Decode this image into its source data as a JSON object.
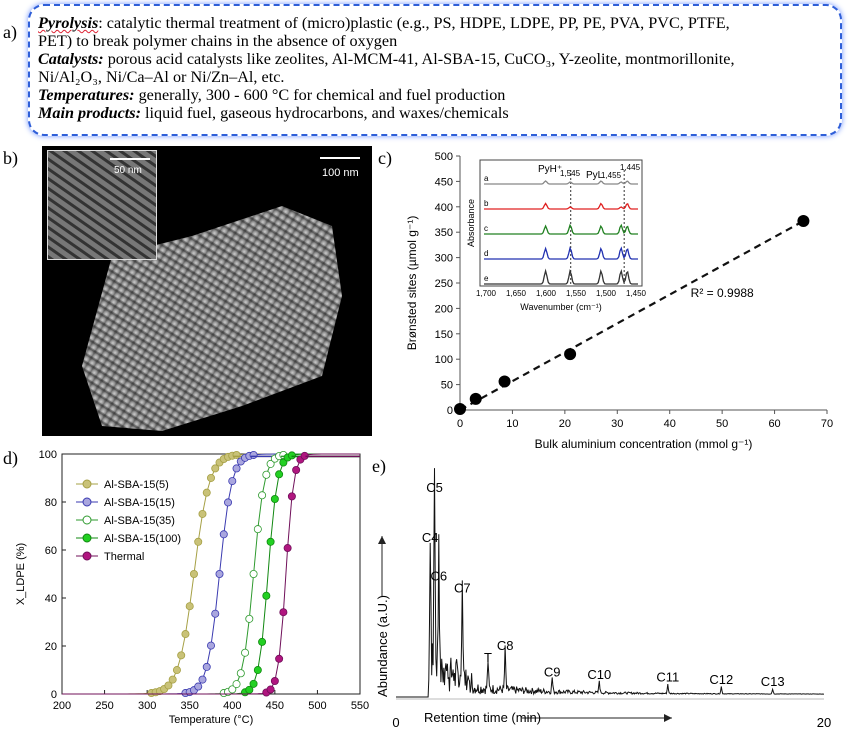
{
  "labels": {
    "a": "a)",
    "b": "b)",
    "c": "c)",
    "d": "d)",
    "e": "e)"
  },
  "textbox": {
    "line1_head": "Pyrolysis",
    "line1_rest": ": catalytic thermal treatment of (micro)plastic (e.g., PS, HDPE, LDPE, PP, PE, PVA, PVC, PTFE,",
    "line2": "PET) to break polymer chains in the absence of oxygen",
    "line3_head": "Catalysts:",
    "line3_rest": " porous acid catalysts like zeolites, Al-MCM-41, Al-SBA-15, CuCO₃, Y-zeolite, montmorillonite,",
    "line4": "Ni/Al₂O₃, Ni/Ca–Al or Ni/Zn–Al, etc.",
    "line5_head": "Temperatures:",
    "line5_rest": " generally, 300 - 600 °C for chemical and fuel production",
    "line6_head": "Main products:",
    "line6_rest": " liquid fuel, gaseous hydrocarbons, and waxes/chemicals"
  },
  "micrograph": {
    "scale_main": "100 nm",
    "scale_inset": "50 nm"
  },
  "chart_data": [
    {
      "id": "c",
      "type": "scatter",
      "xlabel": "Bulk aluminium concentration (mmol g⁻¹)",
      "ylabel": "Brønsted sites (µmol g⁻¹)",
      "xlim": [
        0,
        70
      ],
      "ylim": [
        0,
        500
      ],
      "xticks": [
        0,
        10,
        20,
        30,
        40,
        50,
        60,
        70
      ],
      "yticks": [
        0,
        50,
        100,
        150,
        200,
        250,
        300,
        350,
        400,
        450,
        500
      ],
      "points": [
        [
          0,
          2
        ],
        [
          3,
          22
        ],
        [
          8.5,
          56
        ],
        [
          21,
          110
        ],
        [
          65.5,
          372
        ]
      ],
      "fit": [
        [
          0,
          0
        ],
        [
          65.5,
          372
        ]
      ],
      "annotation": "R² = 0.9988",
      "inset": {
        "xlabel": "Wavenumber (cm⁻¹)",
        "ylabel": "Absorbance",
        "xticks": [
          "1,700",
          "1,650",
          "1,600",
          "1,550",
          "1,500",
          "1,450"
        ],
        "curve_labels": [
          "a",
          "b",
          "c",
          "d",
          "e"
        ],
        "curve_colors": [
          "#888888",
          "#e02020",
          "#208020",
          "#2030b0",
          "#333333"
        ],
        "peak_labels": [
          "PyH⁺",
          "1,545",
          "PyL",
          "1,455",
          "1,445"
        ]
      }
    },
    {
      "id": "d",
      "type": "line",
      "xlabel": "Temperature (°C)",
      "ylabel": "X_LDPE (%)",
      "xlim": [
        200,
        550
      ],
      "ylim": [
        0,
        100
      ],
      "xticks": [
        200,
        250,
        300,
        350,
        400,
        450,
        500,
        550
      ],
      "yticks": [
        0,
        20,
        40,
        60,
        80,
        100
      ],
      "series": [
        {
          "name": "Al-SBA-15(5)",
          "t50": 355,
          "width": 20,
          "color": "#c9c278",
          "line": "#a6a045"
        },
        {
          "name": "Al-SBA-15(15)",
          "t50": 385,
          "width": 16,
          "color": "#a9a6de",
          "line": "#3a3ab0"
        },
        {
          "name": "Al-SBA-15(35)",
          "t50": 425,
          "width": 14,
          "color": "#ffffff",
          "line": "#2e9a2e"
        },
        {
          "name": "Al-SBA-15(100)",
          "t50": 442,
          "width": 12,
          "color": "#22d022",
          "line": "#118811"
        },
        {
          "name": "Thermal",
          "t50": 463,
          "width": 10,
          "color": "#b0157f",
          "line": "#70105a"
        }
      ]
    },
    {
      "id": "e",
      "type": "line",
      "xlabel": "Retention time (min)",
      "ylabel": "Abundance (a.U.)",
      "xlim": [
        0,
        20
      ],
      "xticks": [
        0,
        20
      ],
      "peaks": [
        {
          "label": "C4",
          "t": 1.6,
          "h": 0.62
        },
        {
          "label": "C5",
          "t": 1.8,
          "h": 0.83
        },
        {
          "label": "C6",
          "t": 2.0,
          "h": 0.46
        },
        {
          "label": "C7",
          "t": 3.1,
          "h": 0.41
        },
        {
          "label": "T",
          "t": 4.3,
          "h": 0.12
        },
        {
          "label": "C8",
          "t": 5.1,
          "h": 0.17
        },
        {
          "label": "C9",
          "t": 7.3,
          "h": 0.06
        },
        {
          "label": "C10",
          "t": 9.5,
          "h": 0.05
        },
        {
          "label": "C11",
          "t": 12.7,
          "h": 0.04
        },
        {
          "label": "C12",
          "t": 15.2,
          "h": 0.03
        },
        {
          "label": "C13",
          "t": 17.6,
          "h": 0.02
        }
      ]
    }
  ]
}
